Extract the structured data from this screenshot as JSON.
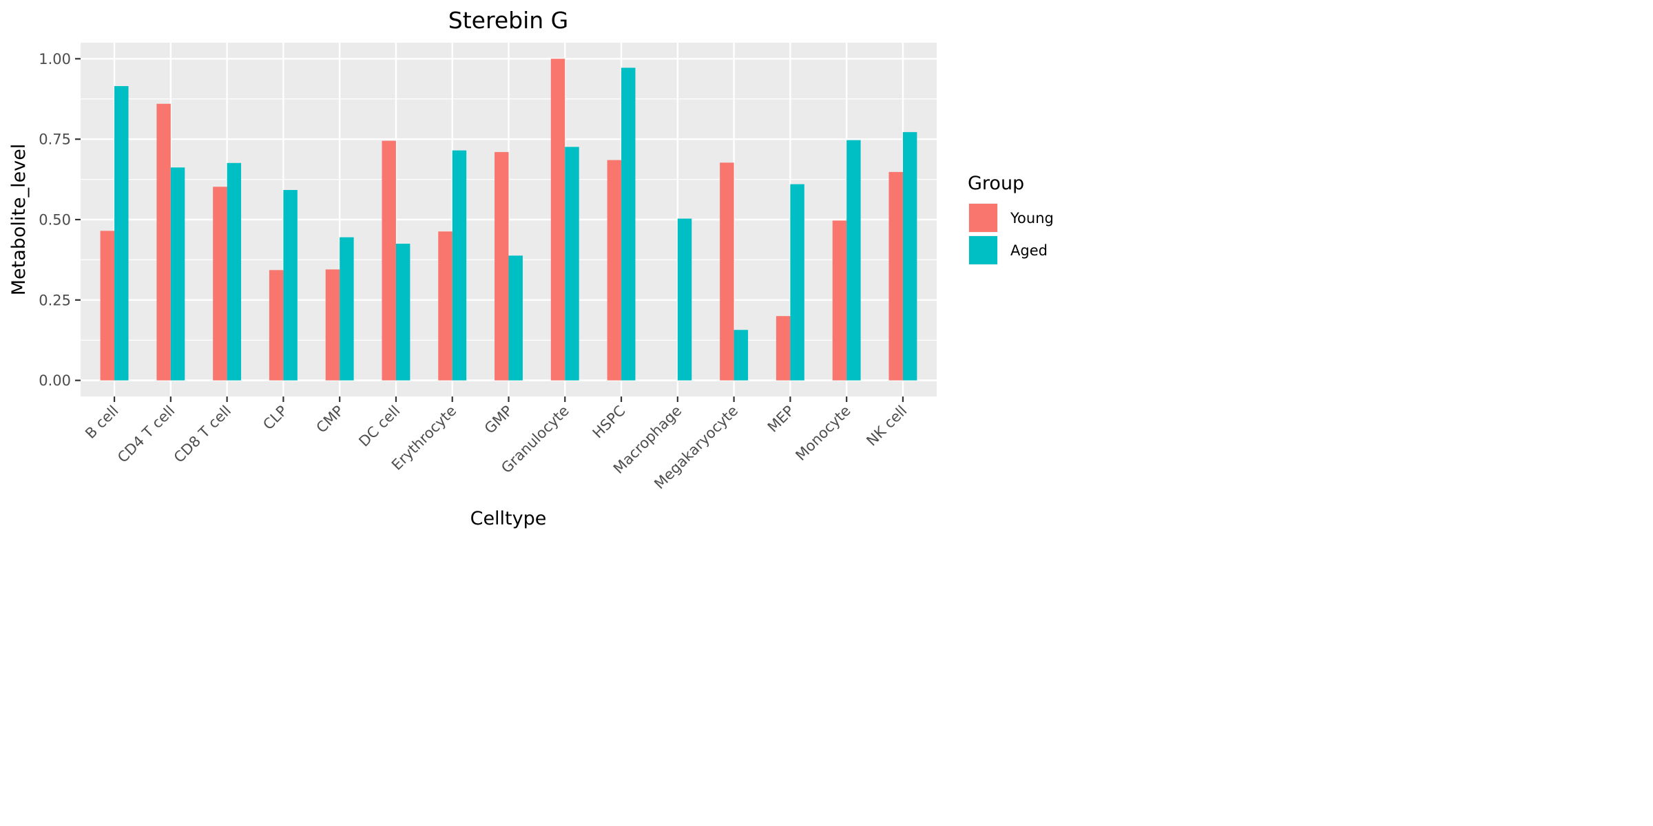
{
  "chart_data": {
    "type": "bar",
    "title": "Sterebin G",
    "xlabel": "Celltype",
    "ylabel": "Metabolite_level",
    "ylim": [
      -0.05,
      1.05
    ],
    "yticks": [
      0.0,
      0.25,
      0.5,
      0.75,
      1.0
    ],
    "ytick_labels": [
      "0.00",
      "0.25",
      "0.50",
      "0.75",
      "1.00"
    ],
    "grid": true,
    "legend": {
      "title": "Group",
      "position": "right"
    },
    "categories": [
      "B cell",
      "CD4 T cell",
      "CD8 T cell",
      "CLP",
      "CMP",
      "DC cell",
      "Erythrocyte",
      "GMP",
      "Granulocyte",
      "HSPC",
      "Macrophage",
      "Megakaryocyte",
      "MEP",
      "Monocyte",
      "NK cell"
    ],
    "series": [
      {
        "name": "Young",
        "color": "#F8766D",
        "values": [
          0.465,
          0.86,
          0.602,
          0.343,
          0.345,
          0.745,
          0.463,
          0.71,
          1.0,
          0.685,
          0.0,
          0.677,
          0.2,
          0.497,
          0.648
        ]
      },
      {
        "name": "Aged",
        "color": "#00BFC4",
        "values": [
          0.915,
          0.662,
          0.676,
          0.592,
          0.445,
          0.425,
          0.715,
          0.388,
          0.726,
          0.972,
          0.503,
          0.157,
          0.61,
          0.747,
          0.772
        ]
      }
    ]
  }
}
